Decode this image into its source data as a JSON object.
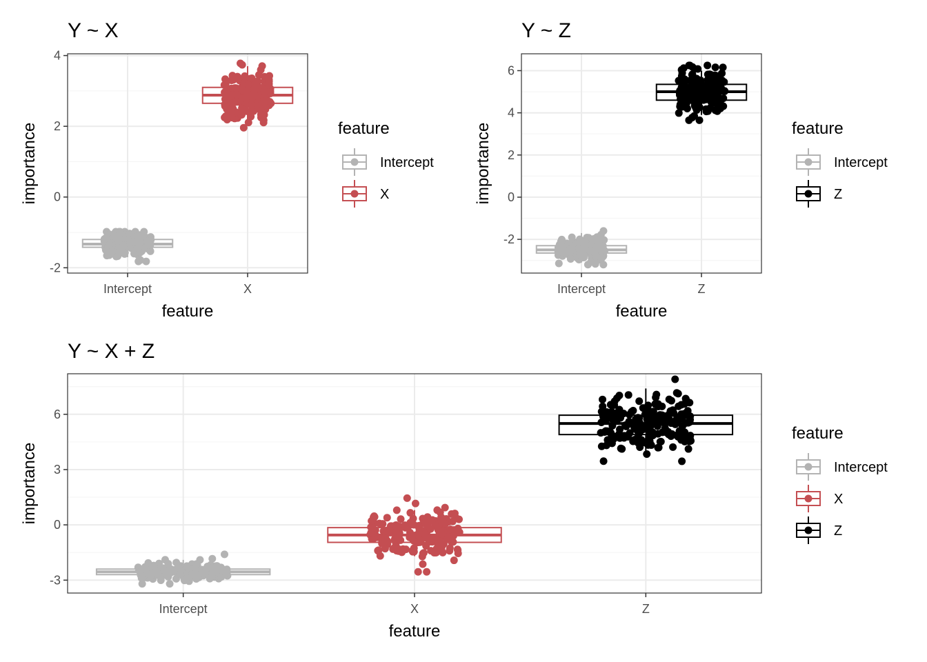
{
  "colors": {
    "Intercept": "#b3b3b3",
    "X": "#c44e52",
    "Z": "#000000",
    "grid_major": "#ebebeb",
    "grid_minor": "#f5f5f5",
    "panel_border": "#333333"
  },
  "chart_data": [
    {
      "type": "box",
      "title": "Y ~ X",
      "xlabel": "feature",
      "ylabel": "importance",
      "categories": [
        "Intercept",
        "X"
      ],
      "ylim": [
        -2.15,
        4.05
      ],
      "yticks": [
        -2,
        0,
        2,
        4
      ],
      "legend_title": "feature",
      "legend_entries": [
        "Intercept",
        "X"
      ],
      "series": [
        {
          "name": "Intercept",
          "q1": -1.42,
          "median": -1.33,
          "q3": -1.2,
          "whisker_low": -1.7,
          "whisker_high": -1.0,
          "point_min": -1.82,
          "point_max": -0.98
        },
        {
          "name": "X",
          "q1": 2.65,
          "median": 2.88,
          "q3": 3.1,
          "whisker_low": 2.1,
          "whisker_high": 3.7,
          "point_min": 1.96,
          "point_max": 3.78
        }
      ]
    },
    {
      "type": "box",
      "title": "Y ~ Z",
      "xlabel": "feature",
      "ylabel": "importance",
      "categories": [
        "Intercept",
        "Z"
      ],
      "ylim": [
        -3.6,
        6.8
      ],
      "yticks": [
        -2,
        0,
        2,
        4,
        6
      ],
      "legend_title": "feature",
      "legend_entries": [
        "Intercept",
        "Z"
      ],
      "series": [
        {
          "name": "Intercept",
          "q1": -2.65,
          "median": -2.5,
          "q3": -2.3,
          "whisker_low": -3.1,
          "whisker_high": -1.7,
          "point_min": -3.2,
          "point_max": -1.6
        },
        {
          "name": "Z",
          "q1": 4.6,
          "median": 5.0,
          "q3": 5.35,
          "whisker_low": 3.9,
          "whisker_high": 6.0,
          "point_min": 3.65,
          "point_max": 6.25
        }
      ]
    },
    {
      "type": "box",
      "title": "Y ~ X + Z",
      "xlabel": "feature",
      "ylabel": "importance",
      "categories": [
        "Intercept",
        "X",
        "Z"
      ],
      "ylim": [
        -3.7,
        8.2
      ],
      "yticks": [
        -3,
        0,
        3,
        6
      ],
      "legend_title": "feature",
      "legend_entries": [
        "Intercept",
        "X",
        "Z"
      ],
      "series": [
        {
          "name": "Intercept",
          "q1": -2.7,
          "median": -2.55,
          "q3": -2.4,
          "whisker_low": -3.0,
          "whisker_high": -1.9,
          "point_min": -3.2,
          "point_max": -1.6
        },
        {
          "name": "X",
          "q1": -0.95,
          "median": -0.55,
          "q3": -0.15,
          "whisker_low": -1.7,
          "whisker_high": 0.8,
          "point_min": -2.55,
          "point_max": 1.45
        },
        {
          "name": "Z",
          "q1": 4.9,
          "median": 5.5,
          "q3": 5.95,
          "whisker_low": 3.7,
          "whisker_high": 7.4,
          "point_min": 3.45,
          "point_max": 7.9
        }
      ]
    }
  ]
}
